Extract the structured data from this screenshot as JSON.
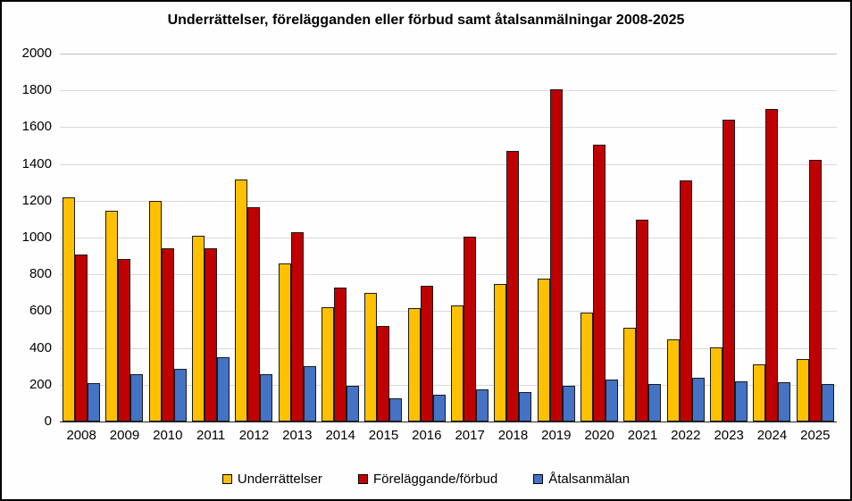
{
  "page": {
    "background": "#FFFFFF",
    "border_color": "#000000"
  },
  "chart_data": {
    "type": "bar",
    "title": "Underrättelser, förelägganden eller förbud samt åtalsanmälningar 2008-2025",
    "categories": [
      "2008",
      "2009",
      "2010",
      "2011",
      "2012",
      "2013",
      "2014",
      "2015",
      "2016",
      "2017",
      "2018",
      "2019",
      "2020",
      "2021",
      "2022",
      "2023",
      "2024",
      "2025"
    ],
    "series": [
      {
        "name": "Underrättelser",
        "color": "#FFC000",
        "values": [
          1220,
          1145,
          1200,
          1010,
          1315,
          860,
          620,
          700,
          615,
          630,
          750,
          775,
          590,
          510,
          445,
          405,
          310,
          340
        ]
      },
      {
        "name": "Föreläggande/förbud",
        "color": "#C00000",
        "values": [
          910,
          885,
          940,
          940,
          1165,
          1030,
          730,
          520,
          740,
          1005,
          1470,
          1805,
          1505,
          1095,
          1310,
          1640,
          1700,
          1420
        ]
      },
      {
        "name": "Åtalsanmälan",
        "color": "#4472C4",
        "values": [
          210,
          255,
          285,
          350,
          255,
          300,
          195,
          125,
          145,
          175,
          160,
          195,
          230,
          205,
          240,
          220,
          215,
          205
        ]
      }
    ],
    "ylim": [
      0,
      2000
    ],
    "ytick_step": 200,
    "grid": true,
    "gridline_color": "#D9D9D9",
    "axis_color": "#262626",
    "bar_outline_color": "#1A1A1A",
    "legend_position": "bottom"
  }
}
